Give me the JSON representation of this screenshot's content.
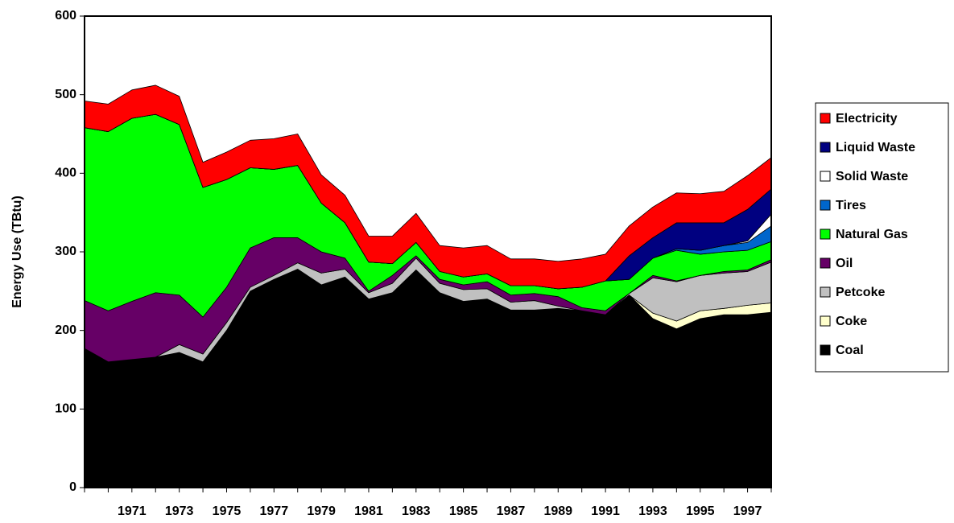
{
  "chart_data": {
    "type": "stacked-area",
    "y_label": "Energy Use (TBtu)",
    "categories": [
      null,
      null,
      "1971",
      null,
      "1973",
      null,
      "1975",
      null,
      "1977",
      null,
      "1979",
      null,
      "1981",
      null,
      "1983",
      null,
      "1985",
      null,
      "1987",
      null,
      "1989",
      null,
      "1991",
      null,
      "1993",
      null,
      "1995",
      null,
      "1997",
      null
    ],
    "ylim": [
      0,
      600
    ],
    "yticks": [
      0,
      100,
      200,
      300,
      400,
      500,
      600
    ],
    "legend": "right",
    "series": [
      {
        "name": "Coal",
        "color": "#000000",
        "values": [
          177,
          160,
          163,
          166,
          172,
          160,
          200,
          250,
          265,
          278,
          258,
          268,
          240,
          248,
          277,
          248,
          237,
          240,
          226,
          226,
          228,
          225,
          220,
          245,
          215,
          202,
          215,
          220,
          220,
          223
        ]
      },
      {
        "name": "Coke",
        "color": "#ffffcc",
        "values": [
          0,
          0,
          0,
          0,
          0,
          0,
          0,
          0,
          0,
          0,
          0,
          0,
          0,
          0,
          0,
          0,
          0,
          0,
          0,
          0,
          0,
          0,
          0,
          0,
          7,
          10,
          10,
          8,
          12,
          12
        ]
      },
      {
        "name": "Petcoke",
        "color": "#c0c0c0",
        "values": [
          0,
          0,
          0,
          0,
          10,
          10,
          10,
          5,
          5,
          8,
          15,
          10,
          8,
          12,
          15,
          12,
          15,
          13,
          10,
          12,
          3,
          0,
          0,
          2,
          45,
          50,
          45,
          45,
          43,
          52
        ]
      },
      {
        "name": "Oil",
        "color": "#660066",
        "values": [
          61,
          65,
          74,
          82,
          63,
          47,
          45,
          50,
          48,
          32,
          27,
          14,
          2,
          10,
          3,
          5,
          6,
          9,
          9,
          9,
          12,
          4,
          5,
          0,
          3,
          1,
          0,
          2,
          2,
          3
        ]
      },
      {
        "name": "Natural Gas",
        "color": "#00ff00",
        "values": [
          220,
          228,
          233,
          227,
          217,
          165,
          137,
          102,
          87,
          92,
          62,
          45,
          37,
          15,
          17,
          10,
          10,
          10,
          12,
          10,
          10,
          26,
          38,
          18,
          22,
          39,
          27,
          25,
          25,
          23
        ]
      },
      {
        "name": "Tires",
        "color": "#0066cc",
        "values": [
          0,
          0,
          0,
          0,
          0,
          0,
          0,
          0,
          0,
          0,
          0,
          0,
          0,
          0,
          0,
          0,
          0,
          0,
          0,
          0,
          0,
          0,
          0,
          0,
          0,
          2,
          5,
          8,
          10,
          20
        ]
      },
      {
        "name": "Solid Waste",
        "color": "#ffffff",
        "values": [
          0,
          0,
          0,
          0,
          0,
          0,
          0,
          0,
          0,
          0,
          0,
          0,
          0,
          0,
          0,
          0,
          0,
          0,
          0,
          0,
          0,
          0,
          0,
          0,
          0,
          0,
          0,
          0,
          2,
          15
        ]
      },
      {
        "name": "Liquid Waste",
        "color": "#000080",
        "values": [
          0,
          0,
          0,
          0,
          0,
          0,
          0,
          0,
          0,
          0,
          0,
          0,
          0,
          0,
          0,
          0,
          0,
          0,
          0,
          0,
          0,
          0,
          0,
          30,
          26,
          33,
          35,
          29,
          40,
          32
        ]
      },
      {
        "name": "Electricity",
        "color": "#ff0000",
        "values": [
          34,
          35,
          36,
          37,
          36,
          32,
          35,
          35,
          39,
          40,
          36,
          35,
          33,
          35,
          37,
          33,
          37,
          36,
          34,
          34,
          35,
          36,
          34,
          38,
          39,
          38,
          37,
          40,
          43,
          40
        ]
      }
    ]
  }
}
